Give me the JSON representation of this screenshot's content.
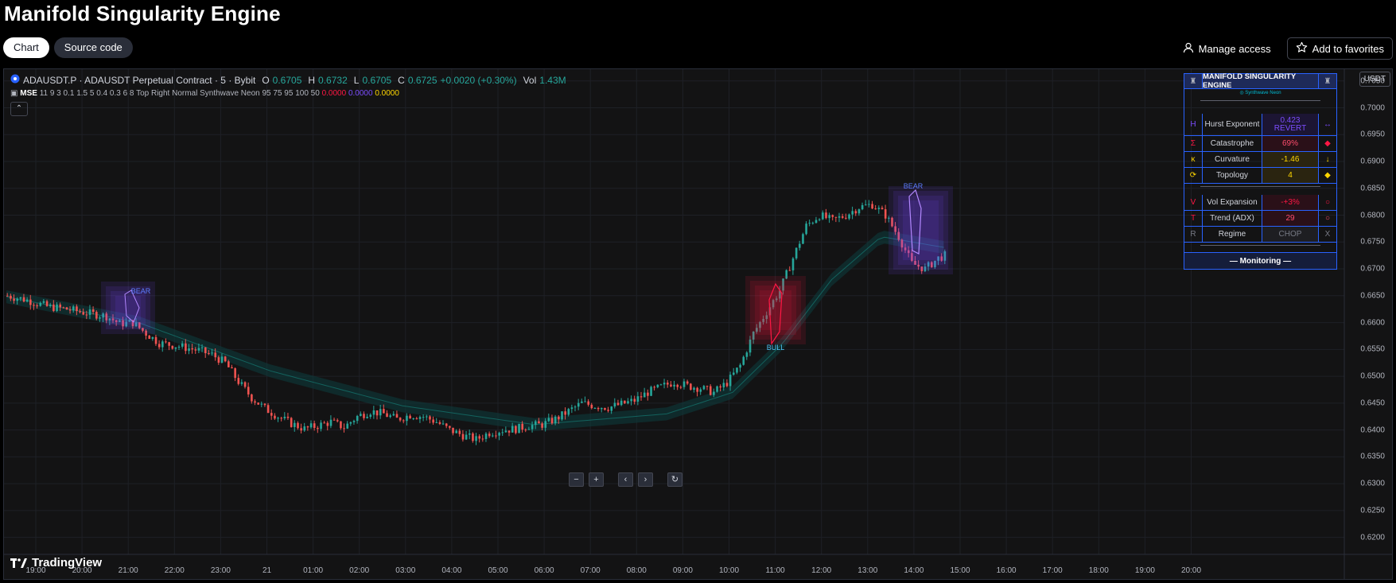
{
  "page": {
    "title": "Manifold Singularity Engine",
    "tabs": [
      {
        "label": "Chart",
        "active": true
      },
      {
        "label": "Source code",
        "active": false
      }
    ],
    "manage_access": "Manage access",
    "add_favorites": "Add to favorites"
  },
  "legend": {
    "symbol": "ADAUSDT.P · ADAUSDT Perpetual Contract · 5 · Bybit",
    "o_label": "O",
    "o": "0.6705",
    "h_label": "H",
    "h": "0.6732",
    "l_label": "L",
    "l": "0.6705",
    "c_label": "C",
    "c": "0.6725",
    "change": "+0.0020 (+0.30%)",
    "vol_label": "Vol",
    "vol": "1.43M",
    "indicator_name": "MSE",
    "indicator_params": "11 9 3 0.1 1.5 5 0.4 0.3 6 8 Top Right Normal Synthwave Neon 95 75 95 100 50",
    "indicator_values": [
      "0.0000",
      "0.0000",
      "0.0000"
    ],
    "indicator_colors": [
      "#ff1744",
      "#7c4dff",
      "#ffd600"
    ]
  },
  "currency": "USDT",
  "price_axis": [
    "0.7050",
    "0.7000",
    "0.6950",
    "0.6900",
    "0.6850",
    "0.6800",
    "0.6750",
    "0.6700",
    "0.6650",
    "0.6600",
    "0.6550",
    "0.6500",
    "0.6450",
    "0.6400",
    "0.6350",
    "0.6300",
    "0.6250",
    "0.6200"
  ],
  "time_axis": [
    "19:00",
    "20:00",
    "21:00",
    "22:00",
    "23:00",
    "21",
    "01:00",
    "02:00",
    "03:00",
    "04:00",
    "05:00",
    "06:00",
    "07:00",
    "08:00",
    "09:00",
    "10:00",
    "11:00",
    "12:00",
    "13:00",
    "14:00",
    "15:00",
    "16:00",
    "17:00",
    "18:00",
    "19:00",
    "20:00"
  ],
  "branding": "TradingView",
  "annotations": {
    "bear1": "BEAR",
    "bull": "BULL",
    "bear2": "BEAR"
  },
  "dashboard": {
    "title": "MANIFOLD SINGULARITY ENGINE",
    "theme": "◎ Synthwave Neon",
    "rows": [
      {
        "sym": "H",
        "label": "Hurst Exponent",
        "value": "0.423\nREVERT",
        "icon": "↔",
        "sym_color": "#7c4dff",
        "val_color": "#7c4dff",
        "icon_color": "#7c4dff",
        "bg": "#1c1533"
      },
      {
        "sym": "Σ",
        "label": "Catastrophe",
        "value": "69%",
        "icon": "◆",
        "sym_color": "#ff1744",
        "val_color": "#ff4d6d",
        "icon_color": "#ff1744",
        "bg": "#2a1018"
      },
      {
        "sym": "κ",
        "label": "Curvature",
        "value": "-1.46",
        "icon": "↓",
        "sym_color": "#ffd600",
        "val_color": "#ffd600",
        "icon_color": "#ffd600",
        "bg": "#2a2410"
      },
      {
        "sym": "⟳",
        "label": "Topology",
        "value": "4",
        "icon": "◆",
        "sym_color": "#ffd600",
        "val_color": "#ffd600",
        "icon_color": "#ffd600",
        "bg": "#2a2410"
      },
      {
        "sym": "V",
        "label": "Vol Expansion",
        "value": "-+3%",
        "icon": "○",
        "sym_color": "#ff1744",
        "val_color": "#ff1744",
        "icon_color": "#ff1744",
        "bg": "#2a1018"
      },
      {
        "sym": "T",
        "label": "Trend (ADX)",
        "value": "29",
        "icon": "○",
        "sym_color": "#ff1744",
        "val_color": "#ff4d6d",
        "icon_color": "#ff4d6d",
        "bg": "#2a1018"
      },
      {
        "sym": "R",
        "label": "Regime",
        "value": "CHOP",
        "icon": "X",
        "sym_color": "#787b86",
        "val_color": "#787b86",
        "icon_color": "#787b86",
        "bg": "#1e1e22"
      }
    ],
    "monitoring": "— Monitoring —"
  },
  "chart_data": {
    "type": "candlestick",
    "title": "",
    "ylim": [
      0.6195,
      0.706
    ],
    "close_path": [
      [
        0,
        0.665
      ],
      [
        6,
        0.6642
      ],
      [
        12,
        0.663
      ],
      [
        18,
        0.6625
      ],
      [
        24,
        0.6618
      ],
      [
        30,
        0.6612
      ],
      [
        34,
        0.6598
      ],
      [
        38,
        0.66
      ],
      [
        42,
        0.658
      ],
      [
        46,
        0.6562
      ],
      [
        52,
        0.6556
      ],
      [
        58,
        0.6548
      ],
      [
        62,
        0.654
      ],
      [
        66,
        0.6525
      ],
      [
        70,
        0.649
      ],
      [
        74,
        0.646
      ],
      [
        78,
        0.644
      ],
      [
        82,
        0.6425
      ],
      [
        86,
        0.6412
      ],
      [
        90,
        0.6402
      ],
      [
        94,
        0.6408
      ],
      [
        98,
        0.6415
      ],
      [
        102,
        0.6405
      ],
      [
        106,
        0.6425
      ],
      [
        110,
        0.6435
      ],
      [
        114,
        0.643
      ],
      [
        118,
        0.642
      ],
      [
        122,
        0.6428
      ],
      [
        126,
        0.6425
      ],
      [
        130,
        0.6415
      ],
      [
        134,
        0.64
      ],
      [
        138,
        0.639
      ],
      [
        142,
        0.6382
      ],
      [
        146,
        0.6395
      ],
      [
        150,
        0.64
      ],
      [
        154,
        0.6402
      ],
      [
        158,
        0.6408
      ],
      [
        162,
        0.641
      ],
      [
        166,
        0.642
      ],
      [
        170,
        0.6435
      ],
      [
        174,
        0.645
      ],
      [
        178,
        0.6445
      ],
      [
        182,
        0.6442
      ],
      [
        186,
        0.6448
      ],
      [
        190,
        0.6455
      ],
      [
        194,
        0.647
      ],
      [
        198,
        0.648
      ],
      [
        202,
        0.649
      ],
      [
        206,
        0.6482
      ],
      [
        210,
        0.6478
      ],
      [
        214,
        0.647
      ],
      [
        218,
        0.6488
      ],
      [
        222,
        0.652
      ],
      [
        226,
        0.658
      ],
      [
        230,
        0.662
      ],
      [
        234,
        0.666
      ],
      [
        238,
        0.672
      ],
      [
        242,
        0.678
      ],
      [
        246,
        0.68
      ],
      [
        250,
        0.679
      ],
      [
        254,
        0.68
      ],
      [
        258,
        0.6815
      ],
      [
        262,
        0.682
      ],
      [
        266,
        0.68
      ],
      [
        270,
        0.676
      ],
      [
        274,
        0.671
      ],
      [
        278,
        0.67
      ],
      [
        282,
        0.672
      ],
      [
        284,
        0.6725
      ]
    ],
    "moving_average": [
      [
        0,
        0.6648
      ],
      [
        40,
        0.66
      ],
      [
        80,
        0.651
      ],
      [
        120,
        0.6445
      ],
      [
        160,
        0.641
      ],
      [
        200,
        0.643
      ],
      [
        220,
        0.647
      ],
      [
        235,
        0.656
      ],
      [
        250,
        0.668
      ],
      [
        265,
        0.676
      ],
      [
        284,
        0.674
      ]
    ],
    "indicator": "MSE 11 9 3 0.1 1.5 5 0.4 0.3 6 8"
  }
}
